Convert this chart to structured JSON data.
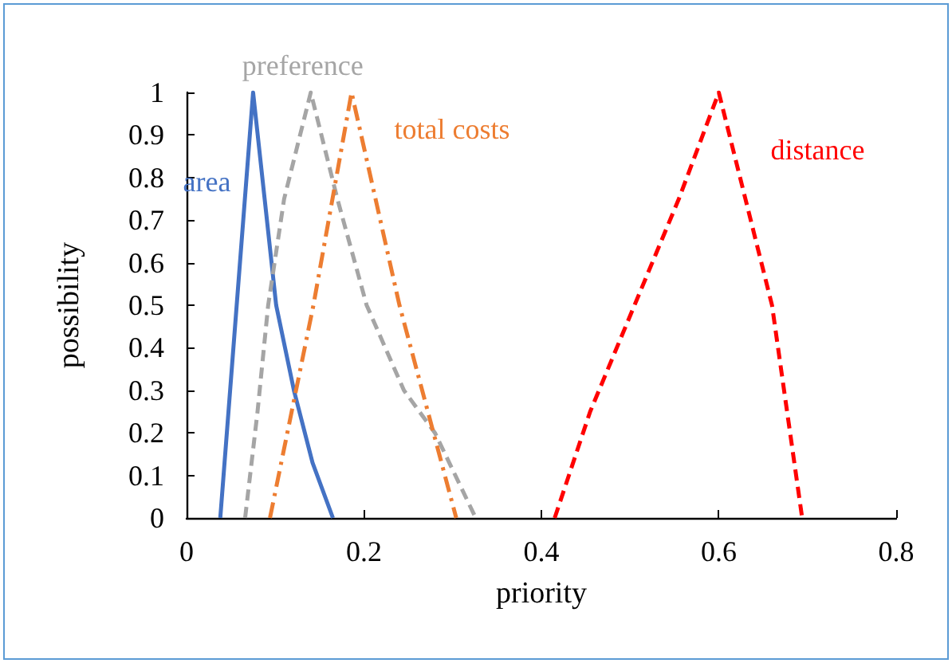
{
  "chart_data": {
    "type": "line",
    "xlabel": "priority",
    "ylabel": "possibility",
    "xlim": [
      0,
      0.8
    ],
    "xticks": [
      0,
      0.2,
      0.4,
      0.6,
      0.8
    ],
    "ylim": [
      0,
      1
    ],
    "yticks": [
      0,
      0.1,
      0.2,
      0.3,
      0.4,
      0.5,
      0.6,
      0.7,
      0.8,
      0.9,
      1
    ],
    "grid": false,
    "legend": false,
    "marker": "none",
    "series": [
      {
        "name": "area",
        "color": "#4472c4",
        "line_style": "solid",
        "x": [
          0.038,
          0.075,
          0.088,
          0.101,
          0.121,
          0.142,
          0.165
        ],
        "values": [
          0,
          1,
          0.75,
          0.5,
          0.3,
          0.13,
          0
        ]
      },
      {
        "name": "preference",
        "color": "#a5a5a5",
        "line_style": "dashed",
        "x": [
          0.066,
          0.08,
          0.092,
          0.11,
          0.14,
          0.17,
          0.203,
          0.245,
          0.28,
          0.326
        ],
        "values": [
          0,
          0.25,
          0.5,
          0.75,
          1,
          0.75,
          0.5,
          0.3,
          0.2,
          0
        ]
      },
      {
        "name": "total costs",
        "color": "#ed7d31",
        "line_style": "dashdot",
        "x": [
          0.094,
          0.143,
          0.186,
          0.24,
          0.304
        ],
        "values": [
          0,
          0.5,
          1,
          0.5,
          0
        ]
      },
      {
        "name": "distance",
        "color": "#ff0000",
        "line_style": "dashed",
        "x": [
          0.415,
          0.455,
          0.505,
          0.555,
          0.6,
          0.63,
          0.66,
          0.694
        ],
        "values": [
          0,
          0.25,
          0.5,
          0.75,
          1,
          0.75,
          0.5,
          0
        ]
      }
    ]
  }
}
